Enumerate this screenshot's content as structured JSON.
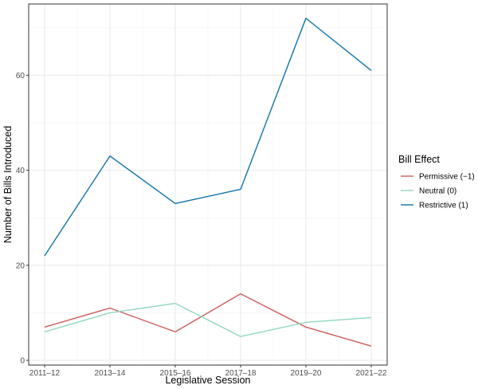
{
  "chart_data": {
    "type": "line",
    "xlabel": "Legislative Session",
    "ylabel": "Number of Bills Introduced",
    "categories": [
      "2011–12",
      "2013–14",
      "2015–16",
      "2017–18",
      "2019–20",
      "2021–22"
    ],
    "ylim": [
      -1,
      75
    ],
    "yticks": [
      0,
      20,
      40,
      60
    ],
    "grid": true,
    "legend_title": "Bill Effect",
    "legend_position": "right",
    "series": [
      {
        "name": "Permissive (−1)",
        "color": "#cd5c5c",
        "values": [
          7,
          11,
          6,
          14,
          7,
          3
        ]
      },
      {
        "name": "Neutral (0)",
        "color": "#90d8bc",
        "values": [
          6,
          10,
          12,
          5,
          8,
          9
        ]
      },
      {
        "name": "Restrictive (1)",
        "color": "#0e74a8",
        "values": [
          22,
          43,
          33,
          36,
          72,
          61
        ]
      }
    ]
  }
}
